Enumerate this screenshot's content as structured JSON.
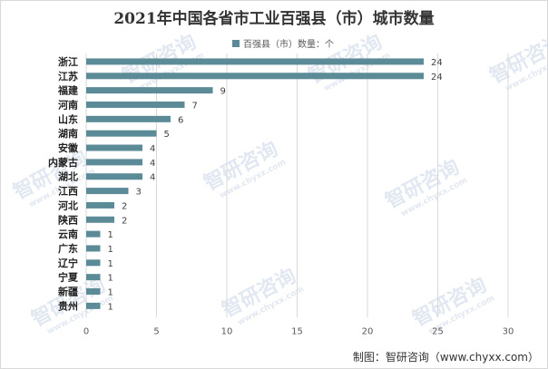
{
  "colors": {
    "bar": "#5b8b96",
    "grid": "#d9d9d9",
    "label": "#595959"
  },
  "watermark": {
    "brand": "智研咨询",
    "site": "www.chyxx.com"
  },
  "footer": {
    "source": "制图：智研咨询（www.chyxx.com）"
  },
  "chart_data": {
    "type": "bar",
    "orientation": "horizontal",
    "title": "2021年中国各省市工业百强县（市）城市数量",
    "categories": [
      "浙江",
      "江苏",
      "福建",
      "河南",
      "山东",
      "湖南",
      "安徽",
      "内蒙古",
      "湖北",
      "江西",
      "河北",
      "陕西",
      "云南",
      "广东",
      "辽宁",
      "宁夏",
      "新疆",
      "贵州"
    ],
    "series": [
      {
        "name": "百强县（市）数量：个",
        "values": [
          24,
          24,
          9,
          7,
          6,
          5,
          4,
          4,
          4,
          3,
          2,
          2,
          1,
          1,
          1,
          1,
          1,
          1
        ]
      }
    ],
    "xlim": [
      0,
      30
    ],
    "xticks": [
      0,
      5,
      10,
      15,
      20,
      25,
      30
    ],
    "grid": true,
    "legend_position": "top"
  }
}
